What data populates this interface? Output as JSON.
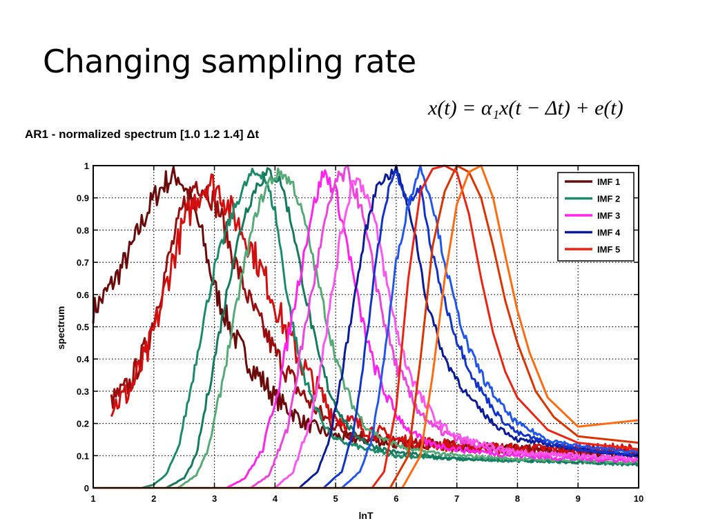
{
  "slide": {
    "title": "Changing sampling rate",
    "formula": "x(t) = α₁x(t − Δt) + e(t)",
    "subtitle": "AR1  - normalized spectrum [1.0  1.2  1.4] Δt"
  },
  "chart_data": {
    "type": "line",
    "xlabel": "lnT",
    "ylabel": "spectrum",
    "xlim": [
      1,
      10
    ],
    "ylim": [
      0,
      1
    ],
    "xticks": [
      1,
      2,
      3,
      4,
      5,
      6,
      7,
      8,
      9,
      10
    ],
    "yticks": [
      0,
      0.1,
      0.2,
      0.3,
      0.4,
      0.5,
      0.6,
      0.7,
      0.8,
      0.9,
      1
    ],
    "grid": true,
    "legend_position": "top-right",
    "legend": [
      {
        "label": "IMF 1",
        "color": "#6b0a0a"
      },
      {
        "label": "IMF 2",
        "color": "#1a8a6a"
      },
      {
        "label": "IMF 3",
        "color": "#ff22ee"
      },
      {
        "label": "IMF 4",
        "color": "#0a1a99"
      },
      {
        "label": "IMF 5",
        "color": "#ee2211"
      }
    ],
    "series": [
      {
        "color": "#6b0a0a",
        "noise": 0.04,
        "x": [
          1,
          1.2,
          1.4,
          1.6,
          1.8,
          2.0,
          2.2,
          2.4,
          2.6,
          2.8,
          3.0,
          3.3,
          3.6,
          4.0,
          4.5,
          5.0,
          6.0,
          7.0,
          8.0,
          9.0,
          10.0
        ],
        "y": [
          0.55,
          0.6,
          0.66,
          0.73,
          0.82,
          0.9,
          0.95,
          0.97,
          0.9,
          0.78,
          0.62,
          0.48,
          0.38,
          0.28,
          0.2,
          0.16,
          0.14,
          0.13,
          0.12,
          0.11,
          0.1
        ]
      },
      {
        "color": "#990d0d",
        "noise": 0.04,
        "x": [
          1.3,
          1.6,
          1.9,
          2.1,
          2.3,
          2.5,
          2.7,
          2.9,
          3.1,
          3.3,
          3.6,
          4.0,
          4.4,
          4.8,
          5.2,
          6.0,
          7.0,
          8.0,
          9.0,
          10.0
        ],
        "y": [
          0.27,
          0.32,
          0.45,
          0.6,
          0.75,
          0.88,
          0.95,
          0.92,
          0.85,
          0.72,
          0.57,
          0.42,
          0.3,
          0.22,
          0.17,
          0.14,
          0.13,
          0.12,
          0.12,
          0.11
        ]
      },
      {
        "color": "#d40f0f",
        "noise": 0.05,
        "x": [
          1.3,
          1.6,
          1.9,
          2.1,
          2.3,
          2.5,
          2.7,
          2.9,
          3.1,
          3.3,
          3.6,
          3.9,
          4.2,
          4.6,
          5.0,
          6.0,
          7.0,
          8.0,
          9.0,
          10.0
        ],
        "y": [
          0.25,
          0.3,
          0.42,
          0.55,
          0.7,
          0.82,
          0.9,
          0.95,
          0.92,
          0.85,
          0.75,
          0.62,
          0.48,
          0.33,
          0.22,
          0.15,
          0.13,
          0.12,
          0.12,
          0.12
        ]
      },
      {
        "color": "#1a8a6a",
        "noise": 0.02,
        "x": [
          1,
          1.8,
          2.0,
          2.2,
          2.4,
          2.6,
          2.8,
          3.0,
          3.2,
          3.4,
          3.6,
          3.8,
          4.0,
          4.2,
          4.4,
          4.6,
          4.8,
          5.0,
          5.5,
          6.0,
          7.0,
          8.0,
          9.0,
          10.0
        ],
        "y": [
          0,
          0,
          0.01,
          0.04,
          0.12,
          0.3,
          0.5,
          0.68,
          0.8,
          0.9,
          0.97,
          0.98,
          0.86,
          0.6,
          0.4,
          0.28,
          0.2,
          0.15,
          0.12,
          0.1,
          0.09,
          0.085,
          0.08,
          0.07
        ]
      },
      {
        "color": "#147a5e",
        "noise": 0.02,
        "x": [
          1,
          2.2,
          2.5,
          2.7,
          2.9,
          3.1,
          3.3,
          3.5,
          3.7,
          3.9,
          4.1,
          4.3,
          4.5,
          4.7,
          4.9,
          5.1,
          5.3,
          5.6,
          6.0,
          7.0,
          8.0,
          9.0,
          10.0
        ],
        "y": [
          0,
          0,
          0.03,
          0.1,
          0.3,
          0.5,
          0.7,
          0.85,
          0.94,
          0.98,
          0.95,
          0.8,
          0.6,
          0.42,
          0.3,
          0.22,
          0.17,
          0.13,
          0.11,
          0.09,
          0.085,
          0.08,
          0.075
        ]
      },
      {
        "color": "#55aa77",
        "noise": 0.02,
        "x": [
          1,
          2.4,
          2.7,
          2.9,
          3.1,
          3.3,
          3.5,
          3.7,
          3.9,
          4.1,
          4.3,
          4.5,
          4.7,
          4.9,
          5.1,
          5.3,
          5.5,
          5.8,
          6.2,
          7.0,
          8.0,
          9.0,
          10.0
        ],
        "y": [
          0,
          0,
          0.04,
          0.12,
          0.3,
          0.5,
          0.7,
          0.86,
          0.95,
          0.98,
          0.94,
          0.82,
          0.65,
          0.48,
          0.34,
          0.25,
          0.19,
          0.15,
          0.12,
          0.1,
          0.09,
          0.085,
          0.08
        ]
      },
      {
        "color": "#ff22ee",
        "noise": 0.025,
        "x": [
          1,
          3.2,
          3.5,
          3.8,
          4.1,
          4.4,
          4.6,
          4.8,
          5.0,
          5.2,
          5.4,
          5.6,
          5.8,
          6.0,
          6.2,
          6.5,
          7.0,
          7.5,
          8.0,
          9.0,
          10.0
        ],
        "y": [
          0,
          0,
          0.03,
          0.12,
          0.35,
          0.65,
          0.85,
          0.98,
          0.92,
          0.75,
          0.55,
          0.4,
          0.3,
          0.23,
          0.18,
          0.14,
          0.12,
          0.11,
          0.1,
          0.09,
          0.085
        ]
      },
      {
        "color": "#ee44dd",
        "noise": 0.025,
        "x": [
          1,
          3.6,
          3.9,
          4.2,
          4.5,
          4.8,
          5.0,
          5.2,
          5.4,
          5.6,
          5.8,
          6.0,
          6.3,
          6.6,
          7.0,
          7.5,
          8.0,
          9.0,
          10.0
        ],
        "y": [
          0,
          0,
          0.04,
          0.18,
          0.5,
          0.8,
          0.95,
          0.98,
          0.88,
          0.7,
          0.52,
          0.38,
          0.26,
          0.19,
          0.15,
          0.12,
          0.11,
          0.1,
          0.09
        ]
      },
      {
        "color": "#ff55f0",
        "noise": 0.025,
        "x": [
          1,
          4.0,
          4.3,
          4.6,
          4.9,
          5.1,
          5.3,
          5.5,
          5.7,
          5.9,
          6.1,
          6.4,
          6.7,
          7.0,
          7.5,
          8.0,
          9.0,
          10.0
        ],
        "y": [
          0,
          0,
          0.05,
          0.22,
          0.55,
          0.8,
          0.97,
          0.92,
          0.78,
          0.58,
          0.42,
          0.28,
          0.2,
          0.16,
          0.13,
          0.11,
          0.1,
          0.09
        ]
      },
      {
        "color": "#0a1a99",
        "noise": 0.015,
        "x": [
          1,
          4.4,
          4.7,
          4.9,
          5.1,
          5.3,
          5.5,
          5.7,
          5.9,
          6.0,
          6.1,
          6.3,
          6.5,
          6.8,
          7.2,
          7.6,
          8.0,
          9.0,
          10.0
        ],
        "y": [
          0,
          0,
          0.05,
          0.15,
          0.35,
          0.58,
          0.8,
          0.95,
          0.97,
          1.0,
          0.93,
          0.8,
          0.58,
          0.4,
          0.28,
          0.2,
          0.15,
          0.12,
          0.1
        ]
      },
      {
        "color": "#1133cc",
        "noise": 0.015,
        "x": [
          1,
          4.8,
          5.1,
          5.3,
          5.5,
          5.7,
          5.9,
          6.0,
          6.2,
          6.4,
          6.6,
          6.8,
          7.0,
          7.3,
          7.7,
          8.0,
          8.5,
          9.0,
          10.0
        ],
        "y": [
          0,
          0,
          0.05,
          0.18,
          0.45,
          0.75,
          0.95,
          0.98,
          0.88,
          0.93,
          0.72,
          0.58,
          0.46,
          0.33,
          0.22,
          0.17,
          0.14,
          0.12,
          0.1
        ]
      },
      {
        "color": "#2255ee",
        "noise": 0.015,
        "x": [
          1,
          5.1,
          5.4,
          5.6,
          5.8,
          6.0,
          6.2,
          6.4,
          6.6,
          6.8,
          7.0,
          7.2,
          7.5,
          7.8,
          8.0,
          8.5,
          9.0,
          10.0
        ],
        "y": [
          0,
          0,
          0.05,
          0.15,
          0.4,
          0.7,
          0.88,
          1.0,
          0.88,
          0.7,
          0.55,
          0.43,
          0.32,
          0.24,
          0.2,
          0.15,
          0.13,
          0.11
        ]
      },
      {
        "color": "#ee2211",
        "noise": 0,
        "x": [
          1,
          5.6,
          5.8,
          6.0,
          6.2,
          6.4,
          6.6,
          6.8,
          7.0,
          7.2,
          7.4,
          7.6,
          7.8,
          8.0,
          8.5,
          9.0,
          10.0
        ],
        "y": [
          0,
          0,
          0.05,
          0.25,
          0.65,
          0.92,
          0.99,
          1.0,
          0.98,
          0.85,
          0.65,
          0.48,
          0.36,
          0.28,
          0.18,
          0.14,
          0.12
        ]
      },
      {
        "color": "#dd3300",
        "noise": 0,
        "x": [
          1,
          5.9,
          6.2,
          6.4,
          6.6,
          6.8,
          7.0,
          7.2,
          7.4,
          7.6,
          7.8,
          8.0,
          8.3,
          8.6,
          9.0,
          10.0
        ],
        "y": [
          0,
          0,
          0.1,
          0.4,
          0.75,
          0.92,
          1.0,
          0.98,
          0.9,
          0.75,
          0.58,
          0.45,
          0.3,
          0.22,
          0.16,
          0.14
        ]
      },
      {
        "color": "#ff6a10",
        "noise": 0,
        "x": [
          1,
          6.1,
          6.4,
          6.6,
          6.8,
          7.0,
          7.2,
          7.4,
          7.6,
          7.8,
          8.0,
          8.2,
          8.5,
          9.0,
          10.0
        ],
        "y": [
          0,
          0,
          0.1,
          0.35,
          0.65,
          0.88,
          0.98,
          1.0,
          0.9,
          0.72,
          0.55,
          0.42,
          0.28,
          0.19,
          0.21
        ]
      }
    ]
  }
}
